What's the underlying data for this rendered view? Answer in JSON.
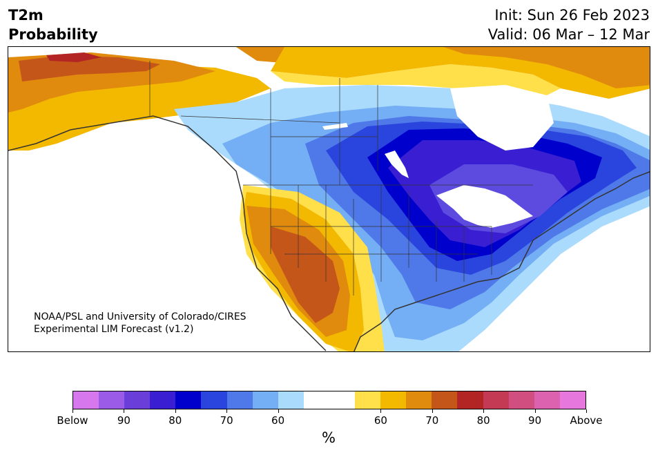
{
  "header": {
    "title_line1": "T2m",
    "title_line2": "Probability",
    "init": "Init: Sun 26 Feb 2023",
    "valid": "Valid: 06 Mar – 12 Mar"
  },
  "map": {
    "credit_line1": "NOAA/PSL and University of Colorado/CIRES",
    "credit_line2": "Experimental LIM Forecast (v1.2)",
    "colors": {
      "below_90": "#5d4be0",
      "below_80": "#3a25d4",
      "below_70_dark": "#0000cc",
      "below_70": "#2a45de",
      "below_60_mid": "#4f79e8",
      "below_60": "#74aef4",
      "below_50": "#abdbfc",
      "neutral": "#ffffff",
      "above_50": "#ffe04a",
      "above_60": "#f3b800",
      "above_70": "#e08a0e",
      "above_80": "#c5561a",
      "above_90": "#b32424",
      "land_outline": "#333333"
    }
  },
  "colorbar": {
    "colors": [
      "#d677ee",
      "#9c5be6",
      "#6a3ed9",
      "#3a1fd2",
      "#0000cc",
      "#2a45de",
      "#4f79e8",
      "#74aef4",
      "#abdbfc",
      "#ffffff",
      "#ffffff",
      "#ffe04a",
      "#f3b800",
      "#e08a0e",
      "#c5561a",
      "#b32424",
      "#c43a55",
      "#d04f80",
      "#dc61ae",
      "#e677dd"
    ],
    "tick_labels": [
      "Below",
      "90",
      "80",
      "70",
      "60",
      "60",
      "70",
      "80",
      "90",
      "Above"
    ],
    "unit_label": "%"
  }
}
